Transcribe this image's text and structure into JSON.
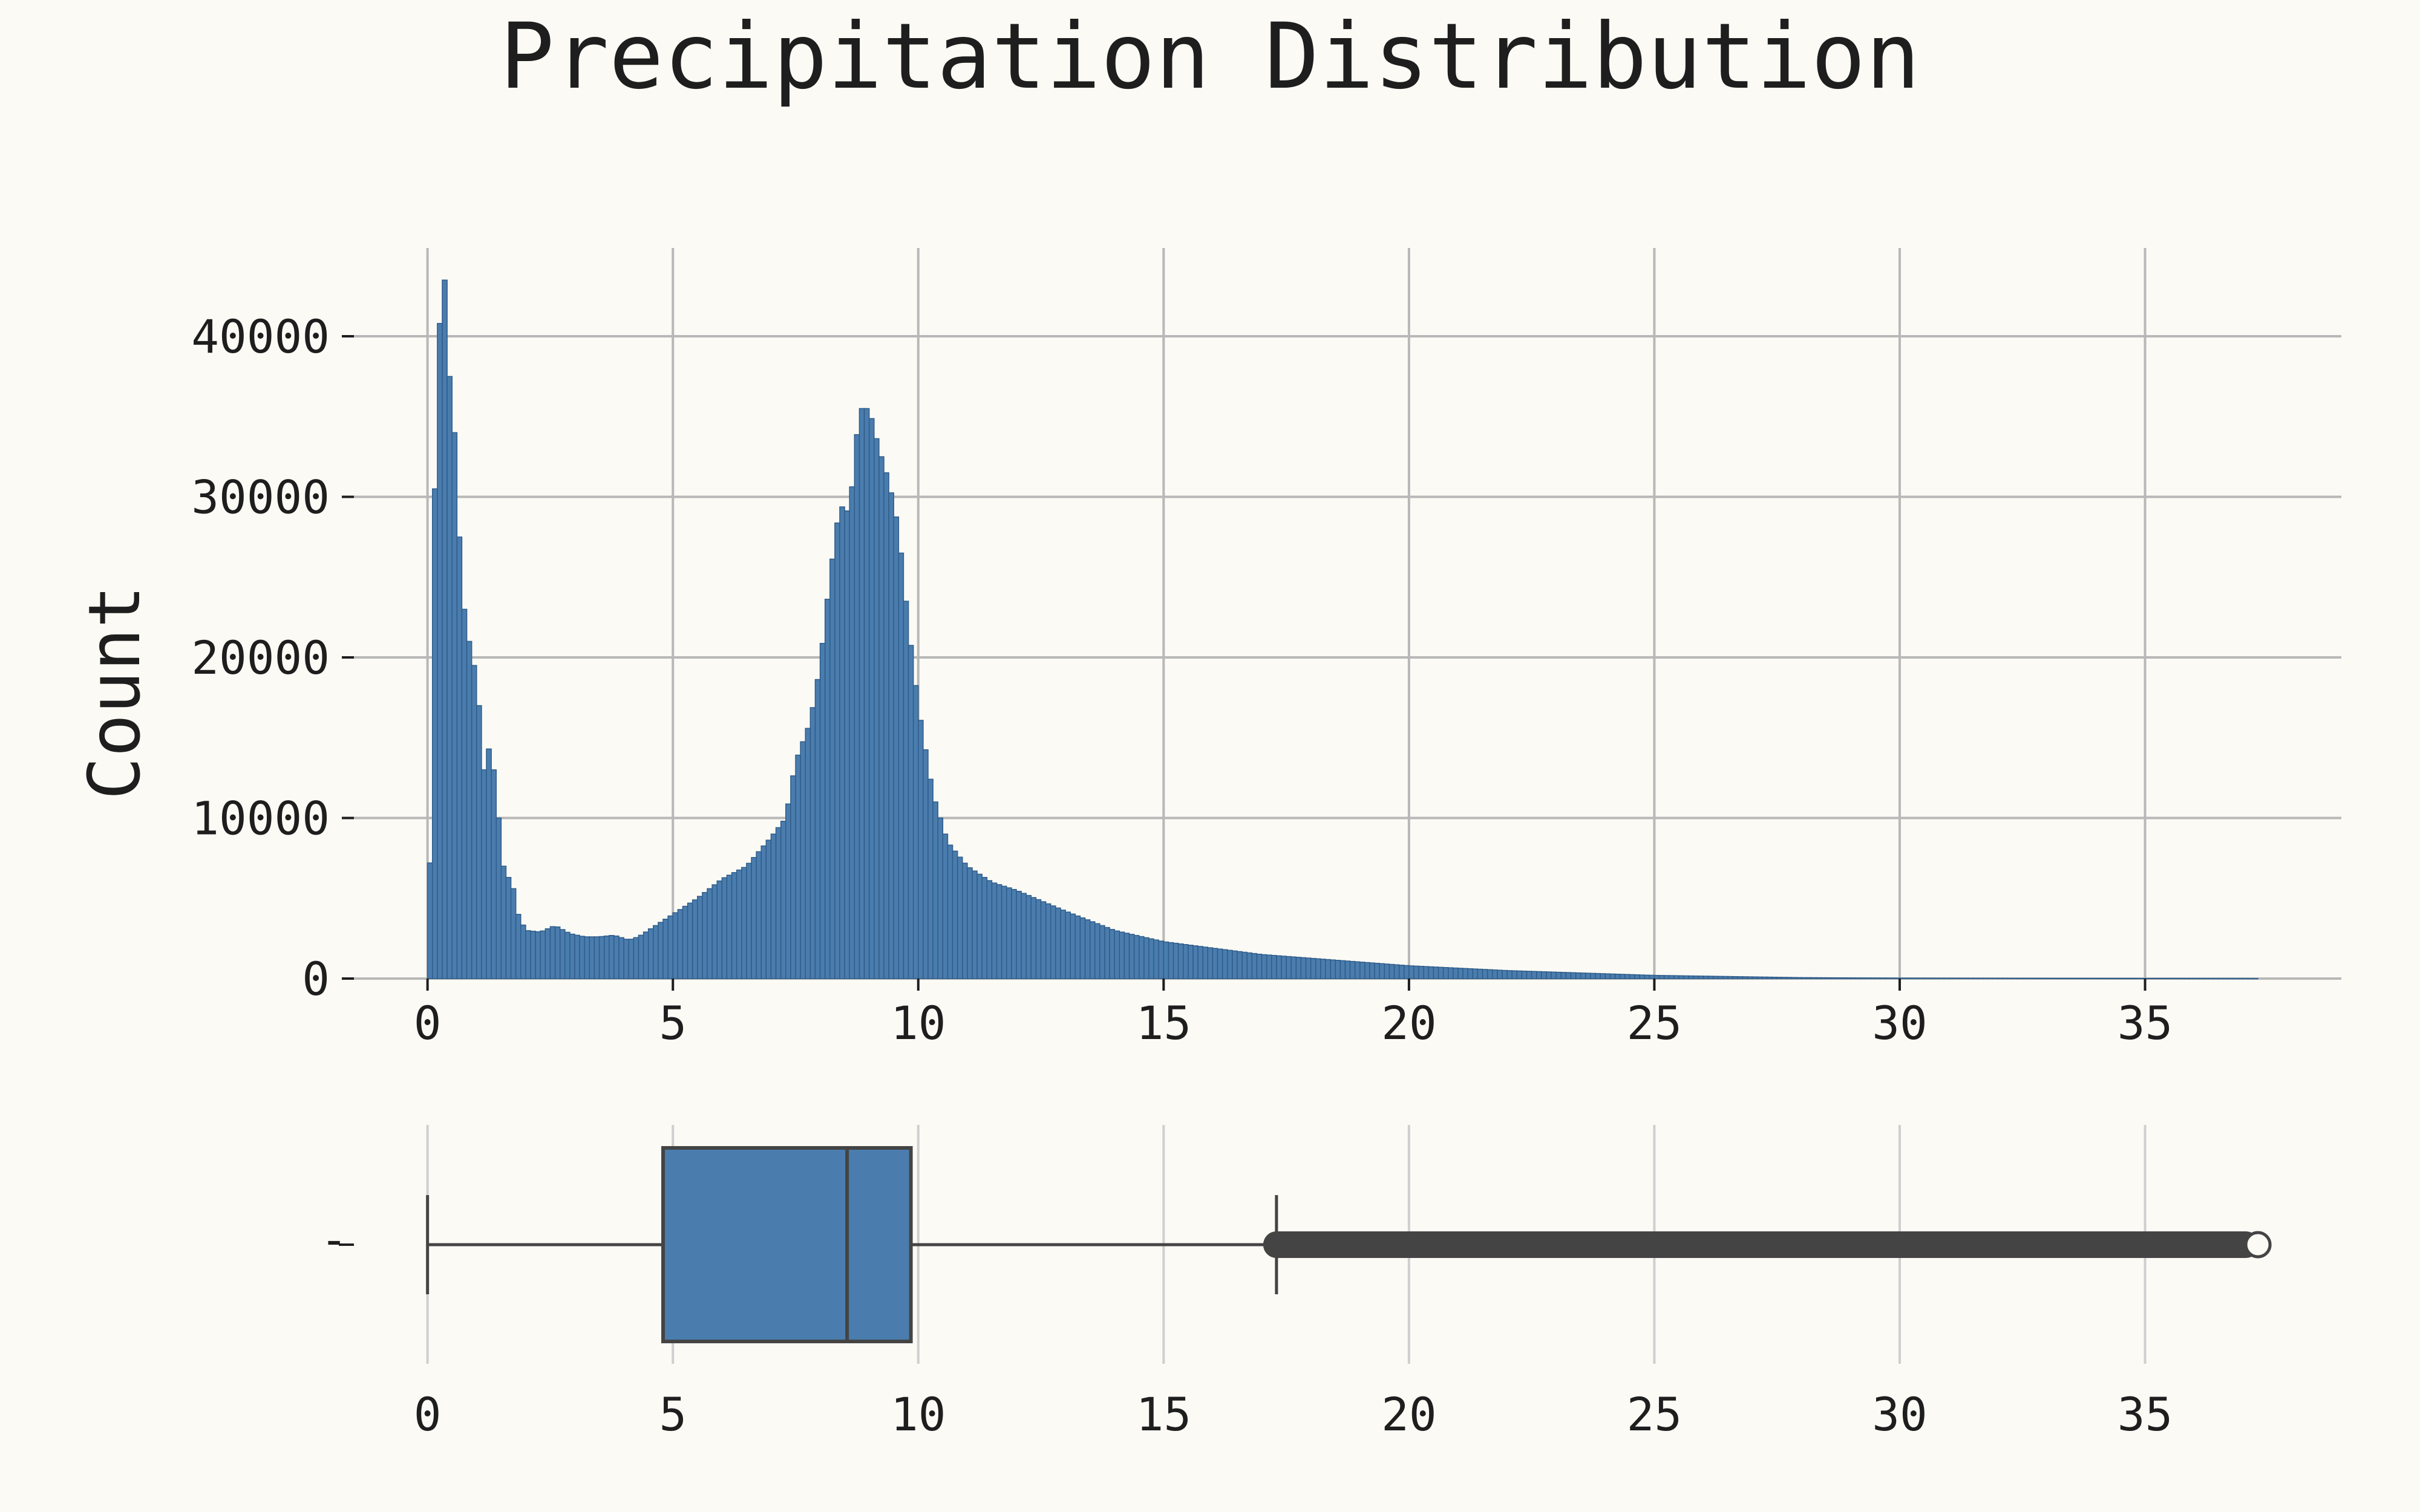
{
  "figure": {
    "title": "Precipitation Distribution",
    "background": "#fbfaf5",
    "text_color": "#1e1e1e"
  },
  "chart_data": [
    {
      "type": "histogram",
      "panel": "top",
      "xlabel": "",
      "ylabel": "Count",
      "xlim": [
        -1.5,
        39
      ],
      "ylim": [
        0,
        45500
      ],
      "xticks": [
        0,
        5,
        10,
        15,
        20,
        25,
        30,
        35
      ],
      "yticks": [
        0,
        10000,
        20000,
        30000,
        40000
      ],
      "grid": true,
      "bar_color": "#4a7dae",
      "bar_edge_color": "#2f5c8a",
      "bin_width": 0.1,
      "bins_start": 0,
      "profile_points": [
        [
          0.05,
          7200
        ],
        [
          0.15,
          30500
        ],
        [
          0.25,
          40800
        ],
        [
          0.35,
          43500
        ],
        [
          0.45,
          37500
        ],
        [
          0.55,
          34000
        ],
        [
          0.65,
          27500
        ],
        [
          0.75,
          23000
        ],
        [
          0.85,
          21000
        ],
        [
          0.95,
          19500
        ],
        [
          1.05,
          17000
        ],
        [
          1.15,
          13000
        ],
        [
          1.25,
          14300
        ],
        [
          1.35,
          13000
        ],
        [
          1.45,
          10000
        ],
        [
          1.55,
          7000
        ],
        [
          1.65,
          6300
        ],
        [
          1.75,
          5600
        ],
        [
          1.85,
          4000
        ],
        [
          2.0,
          3000
        ],
        [
          2.3,
          2900
        ],
        [
          2.6,
          3300
        ],
        [
          2.9,
          2800
        ],
        [
          3.2,
          2600
        ],
        [
          3.5,
          2600
        ],
        [
          3.8,
          2700
        ],
        [
          4.1,
          2400
        ],
        [
          4.3,
          2600
        ],
        [
          4.6,
          3200
        ],
        [
          5.0,
          4000
        ],
        [
          5.5,
          5000
        ],
        [
          6.0,
          6200
        ],
        [
          6.5,
          7000
        ],
        [
          7.0,
          8800
        ],
        [
          7.3,
          10000
        ],
        [
          7.5,
          13500
        ],
        [
          7.8,
          16000
        ],
        [
          8.0,
          19500
        ],
        [
          8.2,
          25000
        ],
        [
          8.4,
          29500
        ],
        [
          8.6,
          29000
        ],
        [
          8.8,
          35500
        ],
        [
          9.0,
          35500
        ],
        [
          9.2,
          33000
        ],
        [
          9.4,
          31000
        ],
        [
          9.6,
          28000
        ],
        [
          9.8,
          22000
        ],
        [
          10.0,
          17000
        ],
        [
          10.3,
          11500
        ],
        [
          10.6,
          8500
        ],
        [
          11.0,
          7000
        ],
        [
          11.5,
          6000
        ],
        [
          12.0,
          5500
        ],
        [
          13.0,
          4200
        ],
        [
          14.0,
          3000
        ],
        [
          15.0,
          2300
        ],
        [
          17.0,
          1500
        ],
        [
          20.0,
          800
        ],
        [
          22.0,
          500
        ],
        [
          25.0,
          200
        ],
        [
          28.0,
          60
        ],
        [
          30.0,
          30
        ],
        [
          33.0,
          12
        ],
        [
          37.0,
          3
        ],
        [
          37.3,
          0
        ]
      ]
    },
    {
      "type": "boxplot",
      "panel": "bottom",
      "xlim": [
        -1.5,
        39
      ],
      "xticks": [
        0,
        5,
        10,
        15,
        20,
        25,
        30,
        35
      ],
      "ytick_label": "-",
      "grid": true,
      "whisker_low": 0.0,
      "q1": 4.8,
      "median": 8.55,
      "q3": 9.85,
      "whisker_high": 17.3,
      "outliers_range": [
        17.3,
        37.3
      ],
      "box_color": "#4a7dae",
      "line_color": "#444444"
    }
  ]
}
